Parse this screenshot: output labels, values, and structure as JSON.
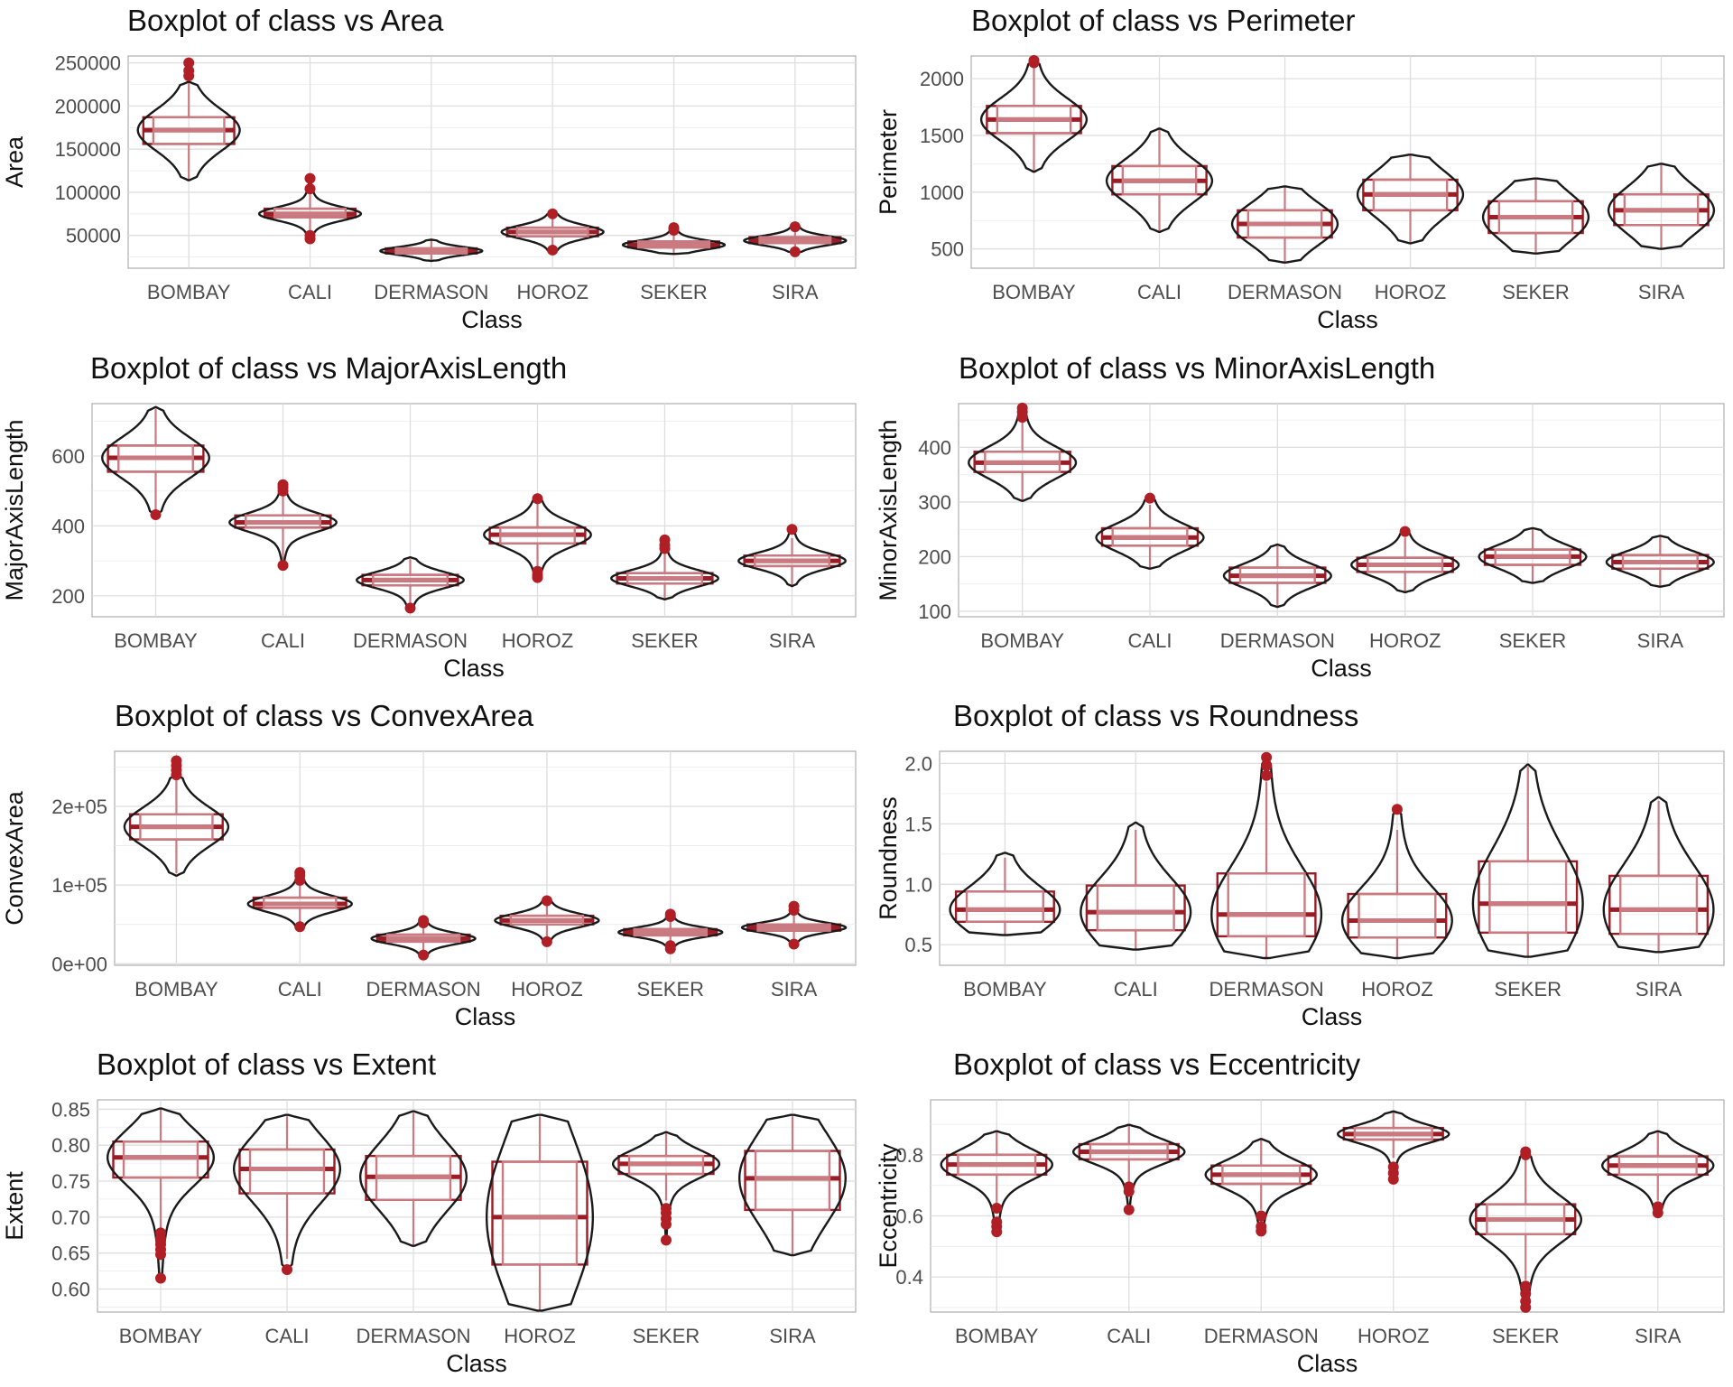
{
  "chart_data": [
    {
      "type": "boxplot",
      "title": "Boxplot of class vs Area",
      "xlabel": "Class",
      "ylabel": "Area",
      "categories": [
        "BOMBAY",
        "CALI",
        "DERMASON",
        "HOROZ",
        "SEKER",
        "SIRA"
      ],
      "ylim": [
        12000,
        258000
      ],
      "yticks": [
        50000,
        100000,
        150000,
        200000,
        250000
      ],
      "ytick_labels": [
        "50000",
        "100000",
        "150000",
        "200000",
        "250000"
      ],
      "boxes": [
        {
          "q1": 156000,
          "median": 172000,
          "q3": 187000,
          "wlow": 114000,
          "whigh": 228000,
          "vmin": 114000,
          "vmax": 228000,
          "outliers": [
            235000,
            241000,
            250000
          ]
        },
        {
          "q1": 71000,
          "median": 75000,
          "q3": 81000,
          "wlow": 51000,
          "whigh": 100000,
          "vmin": 45000,
          "vmax": 116000,
          "outliers": [
            46000,
            50000,
            104000,
            116000
          ]
        },
        {
          "q1": 29000,
          "median": 32000,
          "q3": 35000,
          "wlow": 21000,
          "whigh": 45000,
          "vmin": 20500,
          "vmax": 45000,
          "outliers": []
        },
        {
          "q1": 49000,
          "median": 54000,
          "q3": 59000,
          "wlow": 34000,
          "whigh": 74000,
          "vmin": 31000,
          "vmax": 76000,
          "outliers": [
            33000,
            75000
          ]
        },
        {
          "q1": 36000,
          "median": 39000,
          "q3": 43000,
          "wlow": 29000,
          "whigh": 54000,
          "vmin": 28500,
          "vmax": 60000,
          "outliers": [
            56000,
            59000
          ]
        },
        {
          "q1": 41000,
          "median": 44000,
          "q3": 48000,
          "wlow": 32000,
          "whigh": 58000,
          "vmin": 30000,
          "vmax": 62000,
          "outliers": [
            31000,
            60000
          ]
        }
      ]
    },
    {
      "type": "boxplot",
      "title": "Boxplot of class vs Perimeter",
      "xlabel": "Class",
      "ylabel": "Perimeter",
      "categories": [
        "BOMBAY",
        "CALI",
        "DERMASON",
        "HOROZ",
        "SEKER",
        "SIRA"
      ],
      "ylim": [
        330,
        2200
      ],
      "yticks": [
        500,
        1000,
        1500,
        2000
      ],
      "ytick_labels": [
        "500",
        "1000",
        "1500",
        "2000"
      ],
      "boxes": [
        {
          "q1": 1520,
          "median": 1640,
          "q3": 1760,
          "wlow": 1190,
          "whigh": 2120,
          "vmin": 1180,
          "vmax": 2160,
          "outliers": [
            2140,
            2160
          ]
        },
        {
          "q1": 980,
          "median": 1100,
          "q3": 1230,
          "wlow": 650,
          "whigh": 1560,
          "vmin": 650,
          "vmax": 1560,
          "outliers": []
        },
        {
          "q1": 600,
          "median": 720,
          "q3": 840,
          "wlow": 380,
          "whigh": 1040,
          "vmin": 380,
          "vmax": 1050,
          "outliers": []
        },
        {
          "q1": 840,
          "median": 980,
          "q3": 1110,
          "wlow": 550,
          "whigh": 1320,
          "vmin": 550,
          "vmax": 1330,
          "outliers": []
        },
        {
          "q1": 640,
          "median": 780,
          "q3": 920,
          "wlow": 460,
          "whigh": 1110,
          "vmin": 460,
          "vmax": 1120,
          "outliers": []
        },
        {
          "q1": 710,
          "median": 840,
          "q3": 980,
          "wlow": 500,
          "whigh": 1240,
          "vmin": 500,
          "vmax": 1250,
          "outliers": []
        }
      ]
    },
    {
      "type": "boxplot",
      "title": "Boxplot of class vs MajorAxisLength",
      "xlabel": "Class",
      "ylabel": "MajorAxisLength",
      "categories": [
        "BOMBAY",
        "CALI",
        "DERMASON",
        "HOROZ",
        "SEKER",
        "SIRA"
      ],
      "ylim": [
        140,
        750
      ],
      "yticks": [
        200,
        400,
        600
      ],
      "ytick_labels": [
        "200",
        "400",
        "600"
      ],
      "boxes": [
        {
          "q1": 555,
          "median": 595,
          "q3": 630,
          "wlow": 440,
          "whigh": 735,
          "vmin": 432,
          "vmax": 740,
          "outliers": [
            432
          ]
        },
        {
          "q1": 395,
          "median": 410,
          "q3": 430,
          "wlow": 300,
          "whigh": 490,
          "vmin": 285,
          "vmax": 520,
          "outliers": [
            287,
            500,
            510,
            518
          ]
        },
        {
          "q1": 230,
          "median": 245,
          "q3": 260,
          "wlow": 175,
          "whigh": 305,
          "vmin": 165,
          "vmax": 310,
          "outliers": [
            165
          ]
        },
        {
          "q1": 350,
          "median": 375,
          "q3": 395,
          "wlow": 280,
          "whigh": 465,
          "vmin": 250,
          "vmax": 480,
          "outliers": [
            252,
            260,
            270,
            478
          ]
        },
        {
          "q1": 235,
          "median": 250,
          "q3": 265,
          "wlow": 190,
          "whigh": 325,
          "vmin": 190,
          "vmax": 365,
          "outliers": [
            335,
            345,
            360
          ]
        },
        {
          "q1": 285,
          "median": 300,
          "q3": 315,
          "wlow": 230,
          "whigh": 365,
          "vmin": 228,
          "vmax": 390,
          "outliers": [
            390
          ]
        }
      ]
    },
    {
      "type": "boxplot",
      "title": "Boxplot of class vs MinorAxisLength",
      "xlabel": "Class",
      "ylabel": "MinorAxisLength",
      "categories": [
        "BOMBAY",
        "CALI",
        "DERMASON",
        "HOROZ",
        "SEKER",
        "SIRA"
      ],
      "ylim": [
        90,
        480
      ],
      "yticks": [
        100,
        200,
        300,
        400
      ],
      "ytick_labels": [
        "100",
        "200",
        "300",
        "400"
      ],
      "boxes": [
        {
          "q1": 355,
          "median": 372,
          "q3": 392,
          "wlow": 302,
          "whigh": 450,
          "vmin": 302,
          "vmax": 472,
          "outliers": [
            455,
            465,
            472
          ]
        },
        {
          "q1": 220,
          "median": 235,
          "q3": 252,
          "wlow": 180,
          "whigh": 295,
          "vmin": 178,
          "vmax": 308,
          "outliers": [
            307
          ]
        },
        {
          "q1": 152,
          "median": 165,
          "q3": 180,
          "wlow": 110,
          "whigh": 220,
          "vmin": 108,
          "vmax": 222,
          "outliers": []
        },
        {
          "q1": 172,
          "median": 185,
          "q3": 198,
          "wlow": 135,
          "whigh": 235,
          "vmin": 135,
          "vmax": 246,
          "outliers": [
            246
          ]
        },
        {
          "q1": 185,
          "median": 200,
          "q3": 213,
          "wlow": 152,
          "whigh": 250,
          "vmin": 152,
          "vmax": 252,
          "outliers": []
        },
        {
          "q1": 178,
          "median": 190,
          "q3": 203,
          "wlow": 145,
          "whigh": 238,
          "vmin": 145,
          "vmax": 238,
          "outliers": []
        }
      ]
    },
    {
      "type": "boxplot",
      "title": "Boxplot of class vs ConvexArea",
      "xlabel": "Class",
      "ylabel": "ConvexArea",
      "categories": [
        "BOMBAY",
        "CALI",
        "DERMASON",
        "HOROZ",
        "SEKER",
        "SIRA"
      ],
      "ylim": [
        -2000,
        270000
      ],
      "yticks": [
        0,
        100000,
        200000
      ],
      "ytick_labels": [
        "0e+00",
        "1e+05",
        "2e+05"
      ],
      "boxes": [
        {
          "q1": 158000,
          "median": 174000,
          "q3": 190000,
          "wlow": 115000,
          "whigh": 235000,
          "vmin": 112000,
          "vmax": 240000,
          "outliers": [
            240000,
            246000,
            252000,
            258000
          ]
        },
        {
          "q1": 71000,
          "median": 76000,
          "q3": 84000,
          "wlow": 52000,
          "whigh": 100000,
          "vmin": 45000,
          "vmax": 116000,
          "outliers": [
            47000,
            106000,
            112000,
            116000
          ]
        },
        {
          "q1": 28000,
          "median": 32000,
          "q3": 37000,
          "wlow": 15000,
          "whigh": 48000,
          "vmin": 10000,
          "vmax": 56000,
          "outliers": [
            11000,
            52000,
            55000
          ]
        },
        {
          "q1": 50000,
          "median": 55000,
          "q3": 61000,
          "wlow": 32000,
          "whigh": 78000,
          "vmin": 28000,
          "vmax": 82000,
          "outliers": [
            28000,
            80000
          ]
        },
        {
          "q1": 36000,
          "median": 40000,
          "q3": 44000,
          "wlow": 26000,
          "whigh": 57000,
          "vmin": 18000,
          "vmax": 64000,
          "outliers": [
            19000,
            23000,
            60000,
            63000
          ]
        },
        {
          "q1": 42000,
          "median": 46000,
          "q3": 50000,
          "wlow": 32000,
          "whigh": 62000,
          "vmin": 23000,
          "vmax": 74000,
          "outliers": [
            25000,
            68000,
            73000
          ]
        }
      ]
    },
    {
      "type": "boxplot",
      "title": "Boxplot of class vs Roundness",
      "xlabel": "Class",
      "ylabel": "Roundness",
      "categories": [
        "BOMBAY",
        "CALI",
        "DERMASON",
        "HOROZ",
        "SEKER",
        "SIRA"
      ],
      "ylim": [
        0.33,
        2.1
      ],
      "yticks": [
        0.5,
        1.0,
        1.5,
        2.0
      ],
      "ytick_labels": [
        "0.5",
        "1.0",
        "1.5",
        "2.0"
      ],
      "boxes": [
        {
          "q1": 0.69,
          "median": 0.79,
          "q3": 0.94,
          "wlow": 0.58,
          "whigh": 1.22,
          "vmin": 0.58,
          "vmax": 1.26,
          "outliers": []
        },
        {
          "q1": 0.62,
          "median": 0.77,
          "q3": 0.99,
          "wlow": 0.46,
          "whigh": 1.45,
          "vmin": 0.46,
          "vmax": 1.51,
          "outliers": []
        },
        {
          "q1": 0.57,
          "median": 0.75,
          "q3": 1.09,
          "wlow": 0.39,
          "whigh": 1.85,
          "vmin": 0.39,
          "vmax": 2.05,
          "outliers": [
            1.9,
            1.98,
            2.05
          ]
        },
        {
          "q1": 0.56,
          "median": 0.7,
          "q3": 0.92,
          "wlow": 0.39,
          "whigh": 1.45,
          "vmin": 0.39,
          "vmax": 1.62,
          "outliers": [
            1.62
          ]
        },
        {
          "q1": 0.6,
          "median": 0.84,
          "q3": 1.19,
          "wlow": 0.4,
          "whigh": 1.97,
          "vmin": 0.4,
          "vmax": 1.99,
          "outliers": []
        },
        {
          "q1": 0.59,
          "median": 0.79,
          "q3": 1.07,
          "wlow": 0.44,
          "whigh": 1.69,
          "vmin": 0.44,
          "vmax": 1.72,
          "outliers": []
        }
      ]
    },
    {
      "type": "boxplot",
      "title": "Boxplot of class vs Extent",
      "xlabel": "Class",
      "ylabel": "Extent",
      "categories": [
        "BOMBAY",
        "CALI",
        "DERMASON",
        "HOROZ",
        "SEKER",
        "SIRA"
      ],
      "ylim": [
        0.568,
        0.863
      ],
      "yticks": [
        0.6,
        0.65,
        0.7,
        0.75,
        0.8,
        0.85
      ],
      "ytick_labels": [
        "0.60",
        "0.65",
        "0.70",
        "0.75",
        "0.80",
        "0.85"
      ],
      "boxes": [
        {
          "q1": 0.755,
          "median": 0.783,
          "q3": 0.805,
          "wlow": 0.685,
          "whigh": 0.85,
          "vmin": 0.615,
          "vmax": 0.851,
          "outliers": [
            0.615,
            0.648,
            0.655,
            0.662,
            0.67,
            0.678
          ]
        },
        {
          "q1": 0.733,
          "median": 0.767,
          "q3": 0.794,
          "wlow": 0.642,
          "whigh": 0.84,
          "vmin": 0.627,
          "vmax": 0.842,
          "outliers": [
            0.627
          ]
        },
        {
          "q1": 0.724,
          "median": 0.756,
          "q3": 0.785,
          "wlow": 0.66,
          "whigh": 0.845,
          "vmin": 0.66,
          "vmax": 0.847,
          "outliers": []
        },
        {
          "q1": 0.634,
          "median": 0.7,
          "q3": 0.777,
          "wlow": 0.57,
          "whigh": 0.84,
          "vmin": 0.57,
          "vmax": 0.842,
          "outliers": []
        },
        {
          "q1": 0.76,
          "median": 0.774,
          "q3": 0.785,
          "wlow": 0.723,
          "whigh": 0.817,
          "vmin": 0.668,
          "vmax": 0.818,
          "outliers": [
            0.668,
            0.69,
            0.698,
            0.706,
            0.712
          ]
        },
        {
          "q1": 0.71,
          "median": 0.754,
          "q3": 0.792,
          "wlow": 0.647,
          "whigh": 0.84,
          "vmin": 0.647,
          "vmax": 0.842,
          "outliers": []
        }
      ]
    },
    {
      "type": "boxplot",
      "title": "Boxplot of class vs Eccentricity",
      "xlabel": "Class",
      "ylabel": "Eccentricity",
      "categories": [
        "BOMBAY",
        "CALI",
        "DERMASON",
        "HOROZ",
        "SEKER",
        "SIRA"
      ],
      "ylim": [
        0.285,
        0.98
      ],
      "yticks": [
        0.4,
        0.6,
        0.8
      ],
      "ytick_labels": [
        "0.4",
        "0.6",
        "0.8"
      ],
      "boxes": [
        {
          "q1": 0.735,
          "median": 0.768,
          "q3": 0.8,
          "wlow": 0.64,
          "whigh": 0.875,
          "vmin": 0.548,
          "vmax": 0.877,
          "outliers": [
            0.548,
            0.565,
            0.58,
            0.625
          ]
        },
        {
          "q1": 0.785,
          "median": 0.81,
          "q3": 0.835,
          "wlow": 0.71,
          "whigh": 0.895,
          "vmin": 0.62,
          "vmax": 0.898,
          "outliers": [
            0.62,
            0.68,
            0.695
          ]
        },
        {
          "q1": 0.705,
          "median": 0.735,
          "q3": 0.765,
          "wlow": 0.62,
          "whigh": 0.85,
          "vmin": 0.55,
          "vmax": 0.852,
          "outliers": [
            0.55,
            0.565,
            0.6
          ]
        },
        {
          "q1": 0.85,
          "median": 0.868,
          "q3": 0.888,
          "wlow": 0.79,
          "whigh": 0.94,
          "vmin": 0.72,
          "vmax": 0.942,
          "outliers": [
            0.72,
            0.74,
            0.76
          ]
        },
        {
          "q1": 0.54,
          "median": 0.588,
          "q3": 0.638,
          "wlow": 0.39,
          "whigh": 0.785,
          "vmin": 0.3,
          "vmax": 0.81,
          "outliers": [
            0.3,
            0.32,
            0.345,
            0.37,
            0.8,
            0.81
          ]
        },
        {
          "q1": 0.735,
          "median": 0.765,
          "q3": 0.795,
          "wlow": 0.65,
          "whigh": 0.875,
          "vmin": 0.61,
          "vmax": 0.877,
          "outliers": [
            0.61,
            0.63
          ]
        }
      ]
    }
  ]
}
